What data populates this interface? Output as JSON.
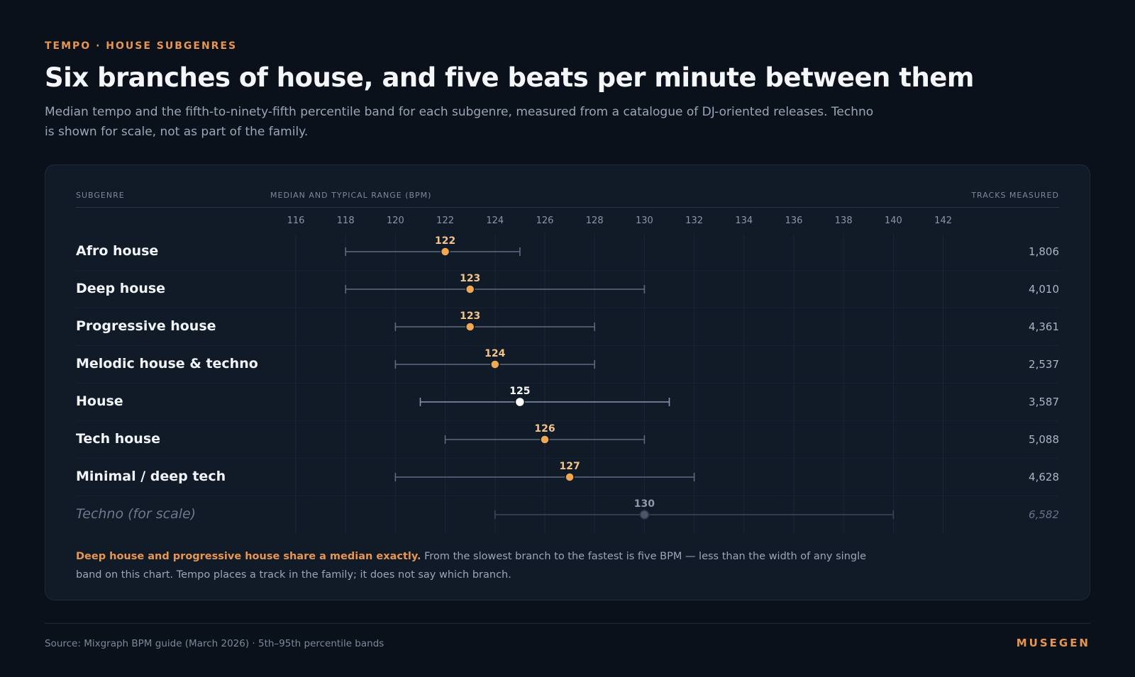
{
  "header": {
    "kicker": "TEMPO · HOUSE SUBGENRES",
    "title": "Six branches of house, and five beats per minute between them",
    "subtitle": "Median tempo and the fifth-to-ninety-fifth percentile band for each subgenre, measured from a catalogue of DJ-oriented releases. Techno is shown for scale, not as part of the family."
  },
  "columns": {
    "subgenre": "SUBGENRE",
    "range": "MEDIAN AND TYPICAL RANGE (BPM)",
    "tracks": "TRACKS MEASURED"
  },
  "colors": {
    "accent": "#e8964e",
    "median_dot": "#f0a853",
    "highlight_dot": "#ffffff",
    "scale_dot": "#4a5668",
    "band": "#5c6b80"
  },
  "chart_data": {
    "type": "range-dot",
    "xlabel": "MEDIAN AND TYPICAL RANGE (BPM)",
    "xlim": [
      116,
      142
    ],
    "ticks": [
      116,
      118,
      120,
      122,
      124,
      126,
      128,
      130,
      132,
      134,
      136,
      138,
      140,
      142
    ],
    "grid": true,
    "rows": [
      {
        "label": "Afro house",
        "median": 122,
        "low": 118,
        "high": 125,
        "tracks": "1,806",
        "style": "normal"
      },
      {
        "label": "Deep house",
        "median": 123,
        "low": 118,
        "high": 130,
        "tracks": "4,010",
        "style": "normal"
      },
      {
        "label": "Progressive house",
        "median": 123,
        "low": 120,
        "high": 128,
        "tracks": "4,361",
        "style": "normal"
      },
      {
        "label": "Melodic house & techno",
        "median": 124,
        "low": 120,
        "high": 128,
        "tracks": "2,537",
        "style": "normal"
      },
      {
        "label": "House",
        "median": 125,
        "low": 121,
        "high": 131,
        "tracks": "3,587",
        "style": "highlight"
      },
      {
        "label": "Tech house",
        "median": 126,
        "low": 122,
        "high": 130,
        "tracks": "5,088",
        "style": "normal"
      },
      {
        "label": "Minimal / deep tech",
        "median": 127,
        "low": 120,
        "high": 132,
        "tracks": "4,628",
        "style": "normal"
      },
      {
        "label": "Techno (for scale)",
        "median": 130,
        "low": 124,
        "high": 140,
        "tracks": "6,582",
        "style": "scale"
      }
    ]
  },
  "note": {
    "lead": "Deep house and progressive house share a median exactly.",
    "body": " From the slowest branch to the fastest is five BPM — less than the width of any single band on this chart. Tempo places a track in the family; it does not say which branch."
  },
  "footer": {
    "source": "Source: Mixgraph BPM guide (March 2026) · 5th–95th percentile bands",
    "brand": "MUSEGEN"
  }
}
